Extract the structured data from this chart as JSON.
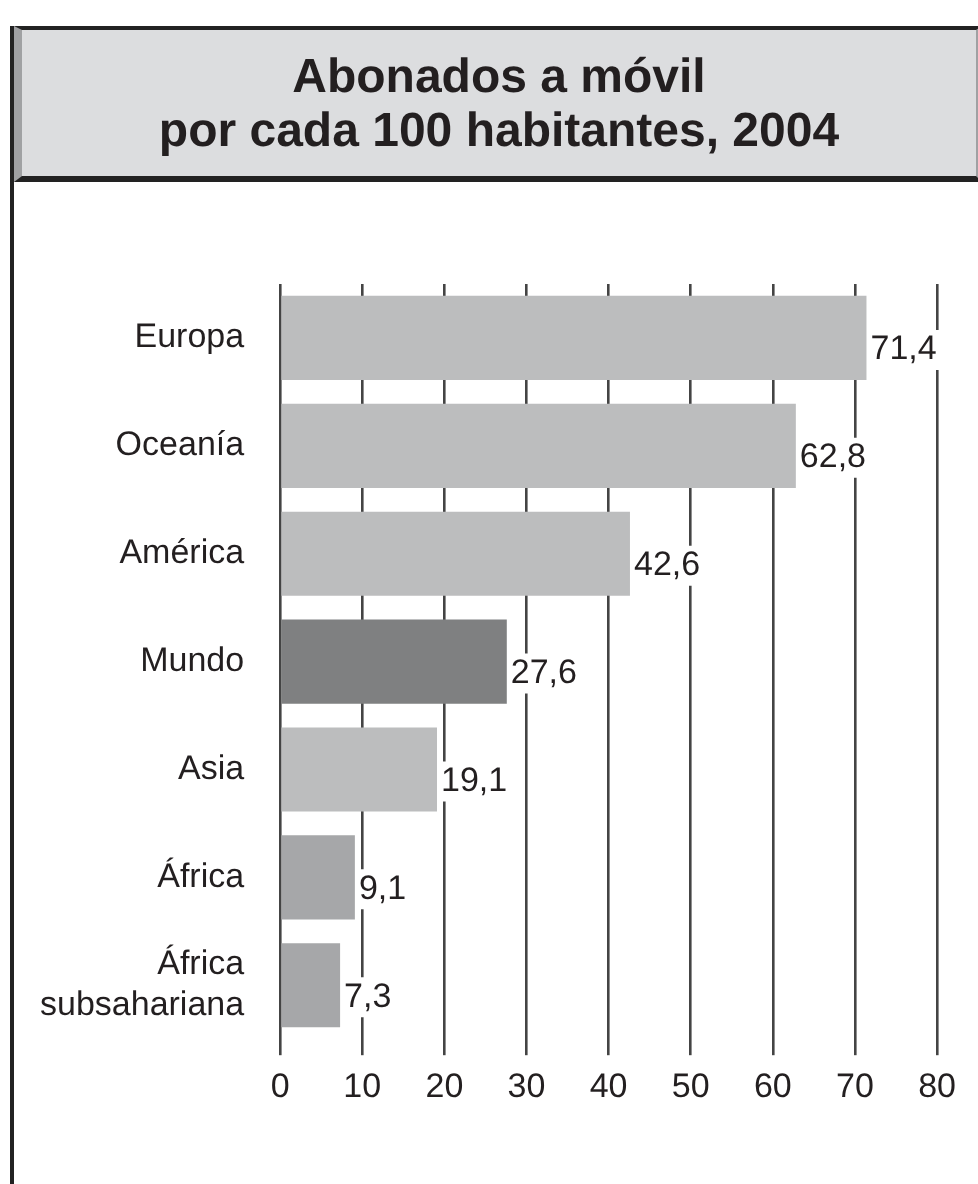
{
  "chart_data": {
    "type": "bar",
    "orientation": "horizontal",
    "title": "Abonados a móvil\npor cada 100 habitantes, 2004",
    "categories": [
      "Europa",
      "Oceanía",
      "América",
      "Mundo",
      "Asia",
      "África",
      "África subsahariana"
    ],
    "values": [
      71.4,
      62.8,
      42.6,
      27.6,
      19.1,
      9.1,
      7.3
    ],
    "colors": [
      "#bcbdbe",
      "#bcbdbe",
      "#bcbdbe",
      "#7f8081",
      "#bcbdbe",
      "#a6a7a9",
      "#a6a7a9"
    ],
    "value_labels": [
      "71,4",
      "62,8",
      "42,6",
      "27,6",
      "19,1",
      "9,1",
      "7,3"
    ],
    "xlim": [
      0,
      80
    ],
    "xticks": [
      0,
      10,
      20,
      30,
      40,
      50,
      60,
      70,
      80
    ],
    "grid": "x"
  }
}
